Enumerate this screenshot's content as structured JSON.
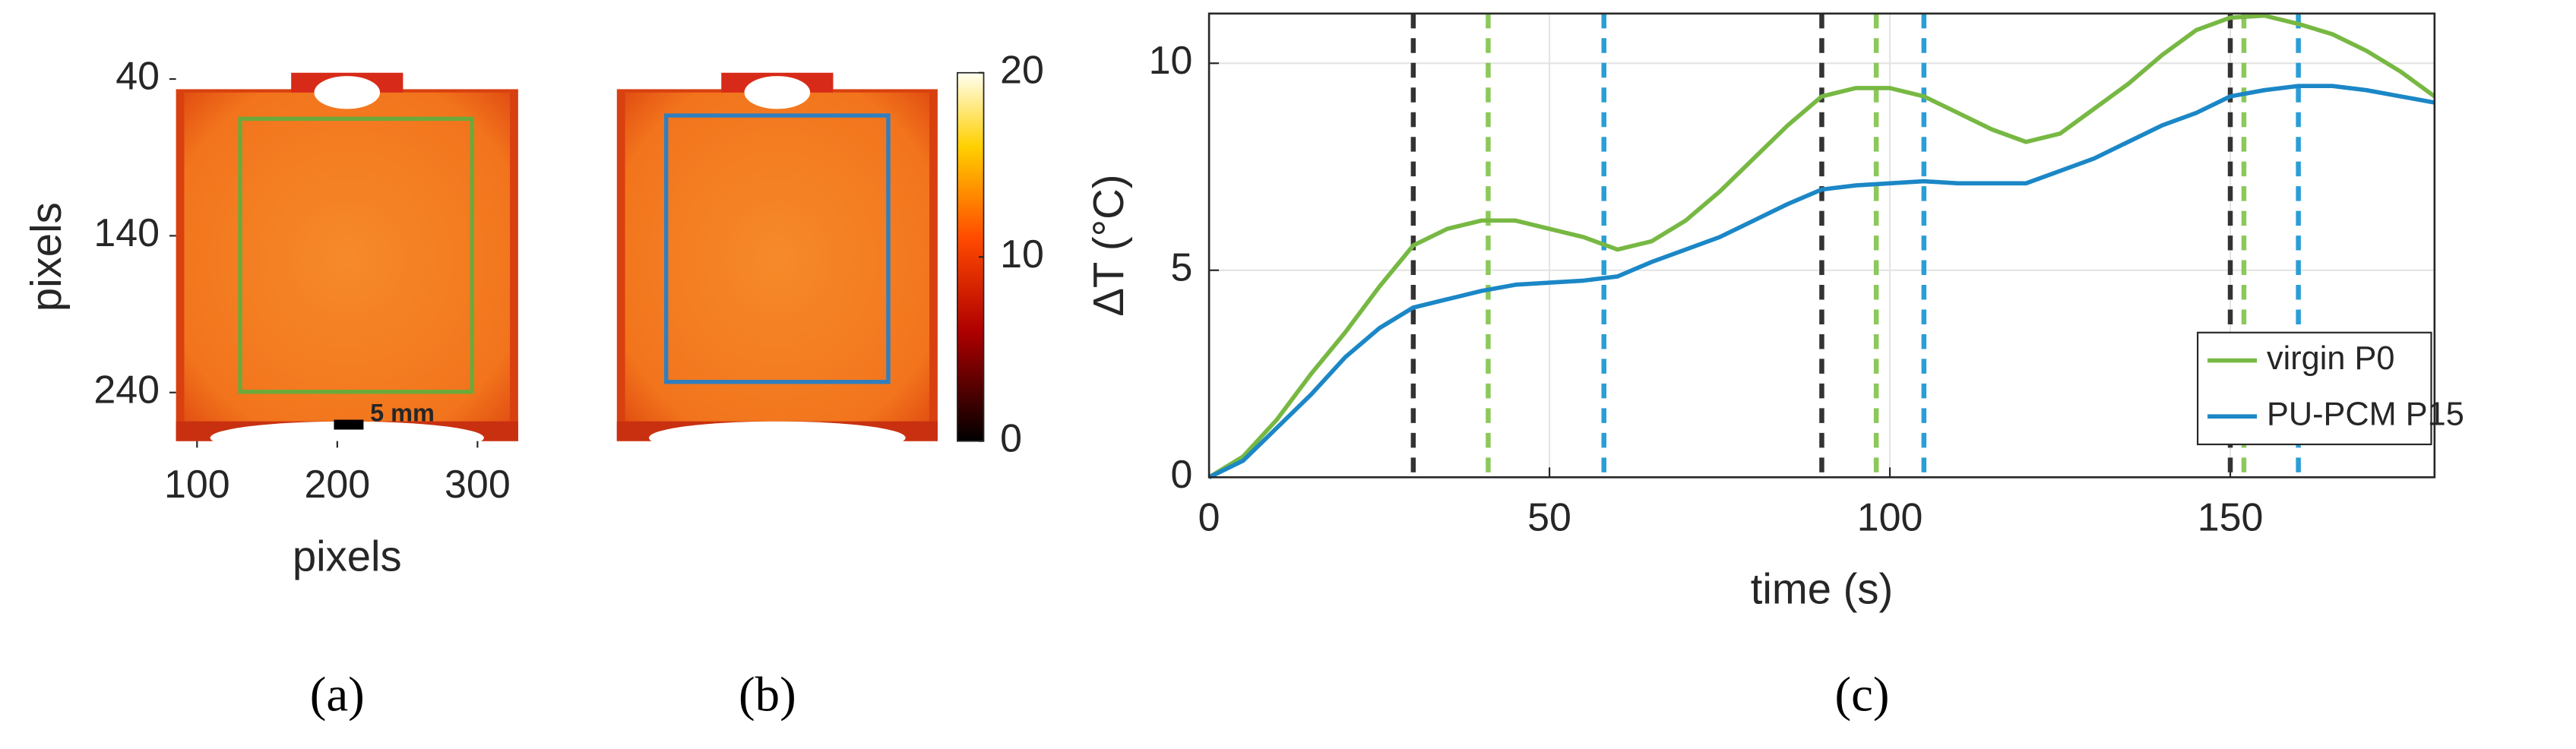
{
  "chart_data": [
    {
      "type": "image",
      "panel_label": "(a)",
      "xlabel": "pixels",
      "ylabel": "pixels",
      "xlim": [
        85,
        329
      ],
      "ylim": [
        36,
        271
      ],
      "y_reversed": true,
      "xticks": [
        100,
        200,
        300
      ],
      "yticks": [
        40,
        140,
        240
      ],
      "annotation": "5 mm",
      "roi_color": "#6aaa3a"
    },
    {
      "type": "image",
      "panel_label": "(b)",
      "roi_color": "#2f7fc0",
      "clim": [
        0,
        20
      ],
      "cticks": [
        0,
        10,
        20
      ]
    },
    {
      "type": "line",
      "panel_label": "(c)",
      "xlabel": "time (s)",
      "ylabel": "ΔT (°C)",
      "x": [
        0,
        5,
        10,
        15,
        20,
        25,
        30,
        35,
        40,
        45,
        50,
        55,
        60,
        65,
        70,
        75,
        80,
        85,
        90,
        95,
        100,
        105,
        110,
        115,
        120,
        125,
        130,
        135,
        140,
        145,
        150,
        155,
        160,
        165,
        170,
        175,
        180
      ],
      "series": [
        {
          "name": "virgin P0",
          "color": "#77b843",
          "values": [
            0,
            0.5,
            1.4,
            2.5,
            3.5,
            4.6,
            5.6,
            6.0,
            6.2,
            6.2,
            6.0,
            5.8,
            5.5,
            5.7,
            6.2,
            6.9,
            7.7,
            8.5,
            9.2,
            9.4,
            9.4,
            9.2,
            8.8,
            8.4,
            8.1,
            8.3,
            8.9,
            9.5,
            10.2,
            10.8,
            11.1,
            11.15,
            10.95,
            10.7,
            10.3,
            9.8,
            9.2
          ]
        },
        {
          "name": "PU-PCM P15",
          "color": "#1b87c6",
          "values": [
            0,
            0.4,
            1.2,
            2.0,
            2.9,
            3.6,
            4.1,
            4.3,
            4.5,
            4.65,
            4.7,
            4.75,
            4.85,
            5.2,
            5.5,
            5.8,
            6.2,
            6.6,
            6.95,
            7.05,
            7.1,
            7.15,
            7.1,
            7.1,
            7.1,
            7.4,
            7.7,
            8.1,
            8.5,
            8.8,
            9.2,
            9.35,
            9.45,
            9.45,
            9.35,
            9.2,
            9.05
          ]
        }
      ],
      "vlines": [
        {
          "color": "#333333",
          "x": [
            30,
            90,
            150
          ]
        },
        {
          "color": "#8cc85a",
          "x": [
            41,
            98,
            152
          ]
        },
        {
          "color": "#2a9ed6",
          "x": [
            58,
            105,
            160
          ]
        }
      ],
      "xlim": [
        0,
        180
      ],
      "ylim": [
        0,
        11.2
      ],
      "xticks": [
        0,
        50,
        100,
        150
      ],
      "yticks": [
        0,
        5,
        10
      ],
      "grid": true,
      "legend": "lower right"
    }
  ]
}
